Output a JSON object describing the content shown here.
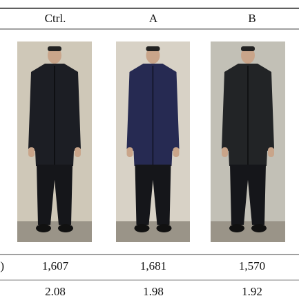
{
  "header": {
    "columns": [
      "Ctrl.",
      "A",
      "B"
    ]
  },
  "rows": [
    {
      "label": ")",
      "cells": [
        "1,607",
        "1,681",
        "1,570"
      ]
    },
    {
      "cells": [
        "2.08",
        "1.98",
        "1.92"
      ]
    }
  ]
}
